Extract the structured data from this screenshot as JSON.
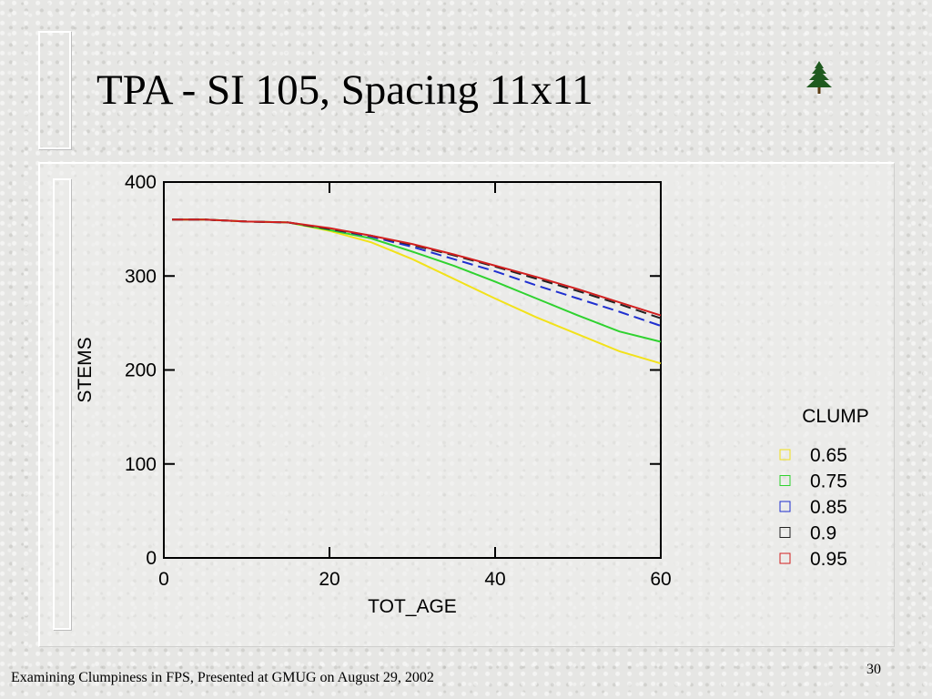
{
  "slide": {
    "title": "TPA - SI 105, Spacing 11x11",
    "footer": "Examining Clumpiness in FPS, Presented at GMUG on August 29, 2002",
    "page_number": "30",
    "icon": "tree-icon"
  },
  "chart_data": {
    "type": "line",
    "title": "",
    "xlabel": "TOT_AGE",
    "ylabel": "STEMS",
    "xlim": [
      0,
      60
    ],
    "ylim": [
      0,
      400
    ],
    "xticks": [
      0,
      20,
      40,
      60
    ],
    "yticks": [
      0,
      100,
      200,
      300,
      400
    ],
    "grid": false,
    "legend": {
      "title": "CLUMP",
      "position": "right"
    },
    "series": [
      {
        "name": "0.65",
        "color": "#f2e21a",
        "dash": "solid",
        "x": [
          1,
          5,
          10,
          15,
          20,
          25,
          30,
          35,
          40,
          45,
          50,
          55,
          60
        ],
        "y": [
          360,
          360,
          358,
          357,
          348,
          336,
          318,
          297,
          276,
          256,
          238,
          220,
          207
        ]
      },
      {
        "name": "0.75",
        "color": "#2fd22f",
        "dash": "solid",
        "x": [
          1,
          5,
          10,
          15,
          20,
          25,
          30,
          35,
          40,
          45,
          50,
          55,
          60
        ],
        "y": [
          360,
          360,
          358,
          357,
          349,
          340,
          326,
          311,
          294,
          276,
          258,
          241,
          230
        ]
      },
      {
        "name": "0.85",
        "color": "#1f2fd0",
        "dash": "dashed",
        "x": [
          1,
          5,
          10,
          15,
          20,
          25,
          30,
          35,
          40,
          45,
          50,
          55,
          60
        ],
        "y": [
          360,
          360,
          358,
          357,
          350,
          342,
          331,
          318,
          305,
          290,
          276,
          262,
          247
        ]
      },
      {
        "name": "0.9",
        "color": "#222222",
        "dash": "dashed",
        "x": [
          1,
          5,
          10,
          15,
          20,
          25,
          30,
          35,
          40,
          45,
          50,
          55,
          60
        ],
        "y": [
          360,
          360,
          358,
          357,
          350,
          343,
          333,
          322,
          310,
          297,
          284,
          270,
          255
        ]
      },
      {
        "name": "0.95",
        "color": "#d21f1f",
        "dash": "solid",
        "x": [
          1,
          5,
          10,
          15,
          20,
          25,
          30,
          35,
          40,
          45,
          50,
          55,
          60
        ],
        "y": [
          360,
          360,
          358,
          357,
          351,
          343,
          334,
          323,
          311,
          299,
          286,
          272,
          258
        ]
      }
    ]
  }
}
